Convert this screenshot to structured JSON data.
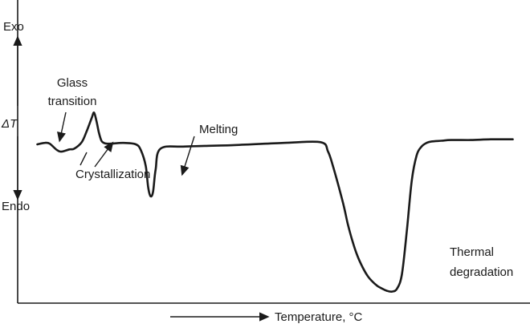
{
  "chart_data": {
    "type": "line",
    "title": "",
    "xlabel": "Temperature, °C",
    "ylabel": "ΔT",
    "y_top_label": "Exo",
    "y_bottom_label": "Endo",
    "x": [
      0,
      3,
      5,
      8,
      10,
      13,
      15,
      18,
      20,
      22,
      23,
      24,
      25,
      26,
      27,
      28,
      30,
      35,
      40,
      42,
      44,
      45,
      46,
      47,
      48,
      50,
      60,
      80,
      100,
      115,
      118,
      120,
      124,
      126,
      128,
      130,
      132,
      134,
      136,
      138,
      140,
      142,
      144,
      146,
      148,
      150,
      152,
      154,
      156,
      158,
      160,
      164,
      168,
      176,
      184,
      193
    ],
    "values": [
      0,
      0.2,
      0.1,
      -0.8,
      -1.0,
      -0.7,
      -0.6,
      0.3,
      1.8,
      3.6,
      4.4,
      3.2,
      1.6,
      0.5,
      0.2,
      0.1,
      0.1,
      0.2,
      0,
      -0.8,
      -3.0,
      -6.0,
      -7.2,
      -6.5,
      -3.5,
      -0.6,
      -0.3,
      -0.1,
      0.2,
      0.3,
      -1.0,
      -3.0,
      -8.0,
      -11.0,
      -13.5,
      -15.5,
      -17.0,
      -18.2,
      -19.0,
      -19.6,
      -20.0,
      -20.3,
      -20.4,
      -20.0,
      -18.0,
      -12.0,
      -5.0,
      -1.5,
      -0.3,
      0.2,
      0.4,
      0.5,
      0.6,
      0.6,
      0.7,
      0.7
    ],
    "ylim": [
      -22,
      20
    ],
    "xlim": [
      -8,
      200
    ],
    "grid": false,
    "annotations": [
      {
        "text_lines": [
          "Glass",
          "transition"
        ],
        "target_x": 5
      },
      {
        "text_lines": [
          "Crystallization"
        ],
        "target_x": 18
      },
      {
        "text_lines": [
          "Melting"
        ],
        "target_x": 44
      },
      {
        "text_lines": [
          "Thermal",
          "degradation"
        ],
        "target_x": 140
      }
    ]
  }
}
